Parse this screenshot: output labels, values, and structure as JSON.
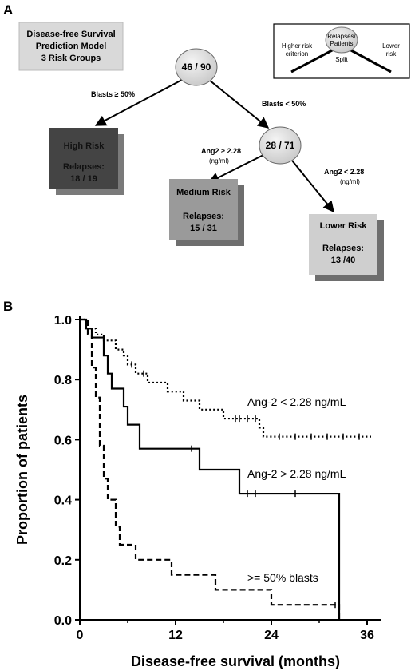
{
  "panel_a": {
    "letter": "A",
    "model_box": {
      "line1": "Disease-free Survival",
      "line2": "Prediction Model",
      "line3": "3 Risk Groups"
    },
    "legend": {
      "node_line1": "Relapses/",
      "node_line2": "Patients",
      "left_line1": "Higher risk",
      "left_line2": "criterion",
      "right_line1": "Lower",
      "right_line2": "risk",
      "split": "Split"
    },
    "root_node": "46 / 90",
    "mid_node": "28 / 71",
    "edge_blasts_high": "Blasts ≥ 50%",
    "edge_blasts_low": "Blasts < 50%",
    "edge_ang_high": "Ang2 ≥ 2.28",
    "edge_ang_high_unit": "(ng/ml)",
    "edge_ang_low": "Ang2 < 2.28",
    "edge_ang_low_unit": "(ng/ml)",
    "high_risk": {
      "title": "High Risk",
      "label": "Relapses:",
      "value": "18 / 19",
      "color": "#444444"
    },
    "medium_risk": {
      "title": "Medium Risk",
      "label": "Relapses:",
      "value": "15 / 31",
      "color": "#9a9a9a"
    },
    "lower_risk": {
      "title": "Lower Risk",
      "label": "Relapses:",
      "value": "13 /40",
      "color": "#cfcfcf"
    }
  },
  "panel_b": {
    "letter": "B"
  },
  "chart_data": {
    "type": "line",
    "xlabel": "Disease-free survival (months)",
    "ylabel": "Proportion of patients",
    "xlim": [
      0,
      37
    ],
    "ylim": [
      0,
      1.0
    ],
    "x_ticks": [
      "0",
      "12",
      "24",
      "36"
    ],
    "x_tick_values": [
      0,
      12,
      24,
      36
    ],
    "y_ticks": [
      "0.0",
      "0.2",
      "0.4",
      "0.6",
      "0.8",
      "1.0"
    ],
    "y_tick_values": [
      0,
      0.2,
      0.4,
      0.6,
      0.8,
      1.0
    ],
    "series": [
      {
        "name": "Ang-2 < 2.28 ng/mL",
        "style": "dotted",
        "steps": [
          [
            0,
            1.0
          ],
          [
            1.0,
            0.97
          ],
          [
            2.0,
            0.95
          ],
          [
            3.0,
            0.93
          ],
          [
            4.5,
            0.9
          ],
          [
            5.5,
            0.88
          ],
          [
            6.0,
            0.85
          ],
          [
            7.0,
            0.82
          ],
          [
            8.5,
            0.79
          ],
          [
            11.0,
            0.76
          ],
          [
            13.0,
            0.73
          ],
          [
            15.0,
            0.7
          ],
          [
            18.0,
            0.67
          ],
          [
            20.5,
            0.67
          ],
          [
            22.5,
            0.64
          ],
          [
            23.0,
            0.61
          ],
          [
            36.5,
            0.61
          ]
        ],
        "censors": [
          [
            6.5,
            0.85
          ],
          [
            8.0,
            0.82
          ],
          [
            19.5,
            0.67
          ],
          [
            20.0,
            0.67
          ],
          [
            21.0,
            0.67
          ],
          [
            22.0,
            0.67
          ],
          [
            25.0,
            0.61
          ],
          [
            27.0,
            0.61
          ],
          [
            29.0,
            0.61
          ],
          [
            31.0,
            0.61
          ],
          [
            33.0,
            0.61
          ],
          [
            35.0,
            0.61
          ]
        ]
      },
      {
        "name": "Ang-2 > 2.28 ng/mL",
        "style": "solid",
        "steps": [
          [
            0,
            1.0
          ],
          [
            0.8,
            0.97
          ],
          [
            1.5,
            0.94
          ],
          [
            3.0,
            0.88
          ],
          [
            3.5,
            0.82
          ],
          [
            4.0,
            0.77
          ],
          [
            5.5,
            0.71
          ],
          [
            6.0,
            0.65
          ],
          [
            7.5,
            0.57
          ],
          [
            15.0,
            0.5
          ],
          [
            20.0,
            0.42
          ],
          [
            32.5,
            0.42
          ],
          [
            32.5,
            0.0
          ]
        ],
        "censors": [
          [
            14.0,
            0.57
          ],
          [
            21.0,
            0.42
          ],
          [
            22.0,
            0.42
          ],
          [
            27.0,
            0.42
          ]
        ]
      },
      {
        "name": ">= 50% blasts",
        "style": "dashed",
        "steps": [
          [
            0,
            1.0
          ],
          [
            1.0,
            0.95
          ],
          [
            1.5,
            0.84
          ],
          [
            2.0,
            0.74
          ],
          [
            2.5,
            0.58
          ],
          [
            3.0,
            0.47
          ],
          [
            3.5,
            0.4
          ],
          [
            4.5,
            0.31
          ],
          [
            5.0,
            0.25
          ],
          [
            7.0,
            0.2
          ],
          [
            11.5,
            0.15
          ],
          [
            17.0,
            0.1
          ],
          [
            24.0,
            0.05
          ],
          [
            32.5,
            0.05
          ],
          [
            32.5,
            0.0
          ]
        ],
        "censors": [
          [
            32.0,
            0.05
          ]
        ]
      }
    ]
  }
}
